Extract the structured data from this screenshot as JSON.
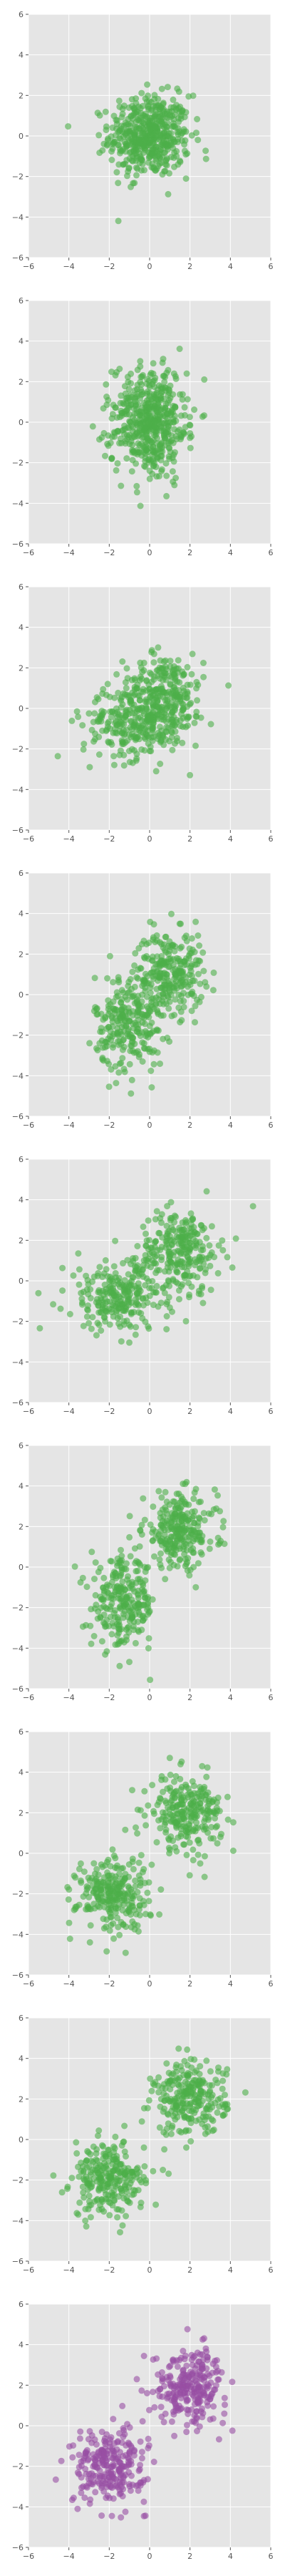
{
  "figure": {
    "background": "#ffffff",
    "panel_background": "#e5e5e5",
    "grid_color": "#ffffff",
    "tick_color": "#555555"
  },
  "chart_data": [
    {
      "type": "scatter",
      "grid": true,
      "xlim": [
        -6,
        6
      ],
      "ylim": [
        -6,
        6
      ],
      "xticks": [
        -6,
        -4,
        -2,
        0,
        2,
        4,
        6
      ],
      "yticks": [
        -6,
        -4,
        -2,
        0,
        2,
        4,
        6
      ],
      "color": "#4daf4a",
      "clusters": [
        {
          "center": [
            0.0,
            0.0
          ],
          "sd": [
            1.0,
            1.0
          ],
          "n": 500
        }
      ]
    },
    {
      "type": "scatter",
      "grid": true,
      "xlim": [
        -6,
        6
      ],
      "ylim": [
        -6,
        6
      ],
      "xticks": [
        -6,
        -4,
        -2,
        0,
        2,
        4,
        6
      ],
      "yticks": [
        -6,
        -4,
        -2,
        0,
        2,
        4,
        6
      ],
      "color": "#4daf4a",
      "clusters": [
        {
          "center": [
            0.0,
            0.5
          ],
          "sd": [
            0.9,
            1.2
          ],
          "n": 260
        },
        {
          "center": [
            0.0,
            -0.5
          ],
          "sd": [
            0.9,
            1.2
          ],
          "n": 260
        }
      ]
    },
    {
      "type": "scatter",
      "grid": true,
      "xlim": [
        -6,
        6
      ],
      "ylim": [
        -6,
        6
      ],
      "xticks": [
        -6,
        -4,
        -2,
        0,
        2,
        4,
        6
      ],
      "yticks": [
        -6,
        -4,
        -2,
        0,
        2,
        4,
        6
      ],
      "color": "#4daf4a",
      "clusters": [
        {
          "center": [
            0.7,
            0.7
          ],
          "sd": [
            1.0,
            1.0
          ],
          "n": 260
        },
        {
          "center": [
            -0.7,
            -0.7
          ],
          "sd": [
            1.3,
            0.9
          ],
          "n": 260
        }
      ]
    },
    {
      "type": "scatter",
      "grid": true,
      "xlim": [
        -6,
        6
      ],
      "ylim": [
        -6,
        6
      ],
      "xticks": [
        -6,
        -4,
        -2,
        0,
        2,
        4,
        6
      ],
      "yticks": [
        -6,
        -4,
        -2,
        0,
        2,
        4,
        6
      ],
      "color": "#4daf4a",
      "clusters": [
        {
          "center": [
            1.0,
            1.1
          ],
          "sd": [
            0.85,
            1.0
          ],
          "n": 260
        },
        {
          "center": [
            -1.0,
            -1.4
          ],
          "sd": [
            0.85,
            1.2
          ],
          "n": 260
        }
      ]
    },
    {
      "type": "scatter",
      "grid": true,
      "xlim": [
        -6,
        6
      ],
      "ylim": [
        -6,
        6
      ],
      "xticks": [
        -6,
        -4,
        -2,
        0,
        2,
        4,
        6
      ],
      "yticks": [
        -6,
        -4,
        -2,
        0,
        2,
        4,
        6
      ],
      "color": "#4daf4a",
      "clusters": [
        {
          "center": [
            1.5,
            1.5
          ],
          "sd": [
            1.0,
            1.0
          ],
          "n": 260
        },
        {
          "center": [
            -1.5,
            -0.8
          ],
          "sd": [
            1.3,
            0.9
          ],
          "n": 260
        }
      ]
    },
    {
      "type": "scatter",
      "grid": true,
      "xlim": [
        -6,
        6
      ],
      "ylim": [
        -6,
        6
      ],
      "xticks": [
        -6,
        -4,
        -2,
        0,
        2,
        4,
        6
      ],
      "yticks": [
        -6,
        -4,
        -2,
        0,
        2,
        4,
        6
      ],
      "color": "#4daf4a",
      "clusters": [
        {
          "center": [
            1.5,
            1.8
          ],
          "sd": [
            0.9,
            0.9
          ],
          "n": 260
        },
        {
          "center": [
            -1.3,
            -1.8
          ],
          "sd": [
            0.8,
            1.1
          ],
          "n": 260
        }
      ]
    },
    {
      "type": "scatter",
      "grid": true,
      "xlim": [
        -6,
        6
      ],
      "ylim": [
        -6,
        6
      ],
      "xticks": [
        -6,
        -4,
        -2,
        0,
        2,
        4,
        6
      ],
      "yticks": [
        -6,
        -4,
        -2,
        0,
        2,
        4,
        6
      ],
      "color": "#4daf4a",
      "clusters": [
        {
          "center": [
            1.8,
            2.0
          ],
          "sd": [
            0.9,
            0.9
          ],
          "n": 260
        },
        {
          "center": [
            -1.8,
            -2.0
          ],
          "sd": [
            0.9,
            0.9
          ],
          "n": 260
        }
      ]
    },
    {
      "type": "scatter",
      "grid": true,
      "xlim": [
        -6,
        6
      ],
      "ylim": [
        -6,
        6
      ],
      "xticks": [
        -6,
        -4,
        -2,
        0,
        2,
        4,
        6
      ],
      "yticks": [
        -6,
        -4,
        -2,
        0,
        2,
        4,
        6
      ],
      "color": "#4daf4a",
      "clusters": [
        {
          "center": [
            2.0,
            2.0
          ],
          "sd": [
            0.9,
            0.9
          ],
          "n": 260
        },
        {
          "center": [
            -2.0,
            -2.0
          ],
          "sd": [
            0.9,
            0.9
          ],
          "n": 260
        }
      ]
    },
    {
      "type": "scatter",
      "grid": true,
      "xlim": [
        -6,
        6
      ],
      "ylim": [
        -6,
        6
      ],
      "xticks": [
        -6,
        -4,
        -2,
        0,
        2,
        4,
        6
      ],
      "yticks": [
        -6,
        -4,
        -2,
        0,
        2,
        4,
        6
      ],
      "color": "#984ea3",
      "clusters": [
        {
          "center": [
            2.0,
            2.0
          ],
          "sd": [
            0.9,
            0.9
          ],
          "n": 260
        },
        {
          "center": [
            -2.0,
            -2.0
          ],
          "sd": [
            0.9,
            0.9
          ],
          "n": 260
        }
      ]
    }
  ]
}
